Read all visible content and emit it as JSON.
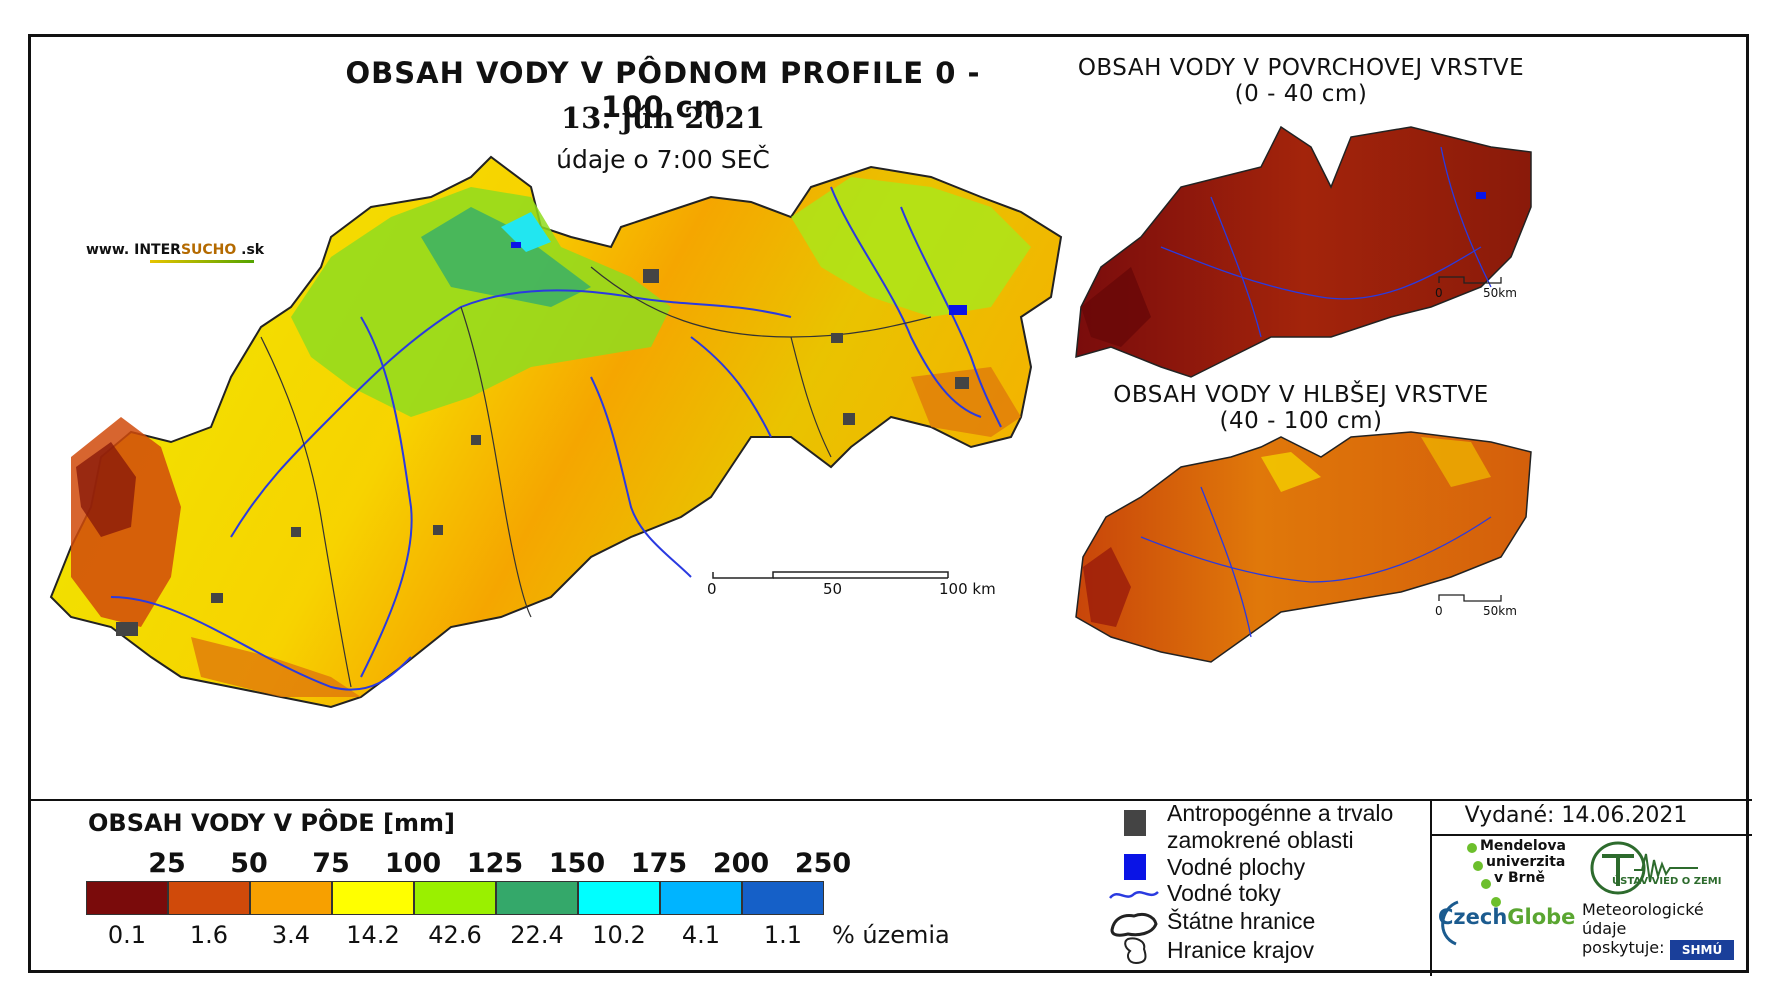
{
  "title": {
    "main": "OBSAH VODY V PÔDNOM PROFILE 0 - 100 cm",
    "date": "13. jún 2021",
    "note": "údaje o 7:00 SEČ"
  },
  "website": {
    "prefix": "www. ",
    "brand_a": "INTER",
    "brand_b": "SUCHO",
    "suffix": " .sk"
  },
  "inset_top": {
    "line1": "OBSAH VODY V POVRCHOVEJ VRSTVE",
    "line2": "(0 - 40 cm)"
  },
  "inset_bottom": {
    "line1": "OBSAH VODY V HLBŠEJ VRSTVE",
    "line2": "(40 - 100 cm)"
  },
  "scalebar_main": {
    "labels": [
      "0",
      "50",
      "100 km"
    ]
  },
  "scalebar_inset": {
    "labels": [
      "0",
      "50km"
    ]
  },
  "legend": {
    "title": "OBSAH VODY V PÔDE [mm]",
    "thresholds": [
      "25",
      "50",
      "75",
      "100",
      "125",
      "150",
      "175",
      "200",
      "250"
    ],
    "classes": [
      {
        "color": "#7a0b0b",
        "pct": "0.1"
      },
      {
        "color": "#d04a0a",
        "pct": "1.6"
      },
      {
        "color": "#f7a000",
        "pct": "3.4"
      },
      {
        "color": "#ffff00",
        "pct": "14.2"
      },
      {
        "color": "#9af000",
        "pct": "42.6"
      },
      {
        "color": "#34a86a",
        "pct": "22.4"
      },
      {
        "color": "#00ffff",
        "pct": "10.2"
      },
      {
        "color": "#00b4ff",
        "pct": "4.1"
      },
      {
        "color": "#1560c8",
        "pct": "1.1"
      }
    ],
    "unit": "% územia"
  },
  "map_legend": {
    "anthro_line1": "Antropogénne a trvalo",
    "anthro_line2": "zamokrené oblasti",
    "water_bodies": "Vodné plochy",
    "rivers": "Vodné toky",
    "state_border": "Štátne hranice",
    "regional_border": "Hranice krajov",
    "colors": {
      "anthro": "#444444",
      "water": "#0a14e6",
      "river": "#2a3ae0"
    }
  },
  "issued": "Vydané: 14.06.2021",
  "credits": {
    "mendel": [
      "Mendelova",
      "univerzita",
      "v Brně"
    ],
    "czechglobe_a": "Czech",
    "czechglobe_b": "Globe",
    "uvz": "ÚSTAV VIED O ZEMI",
    "met_line1": "Meteorologické",
    "met_line2": "údaje",
    "met_line3": "poskytuje:",
    "shmu": "SHMÚ"
  }
}
